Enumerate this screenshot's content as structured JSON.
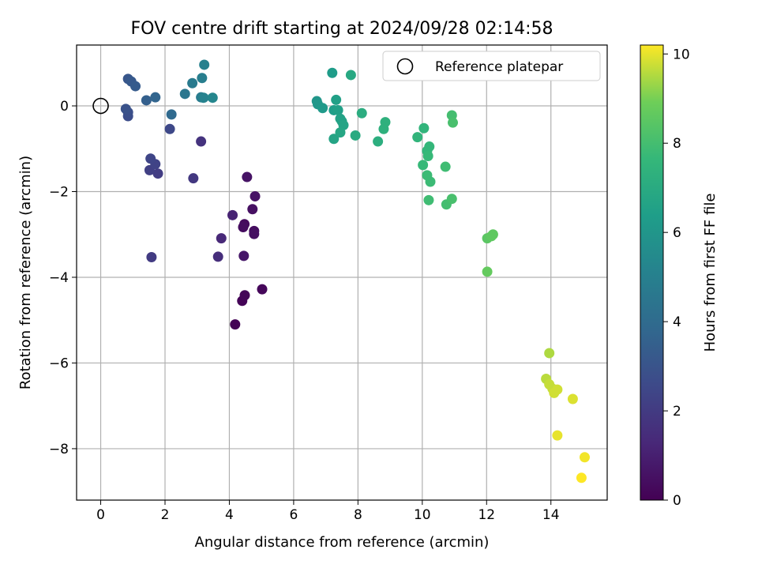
{
  "chart_data": {
    "type": "scatter",
    "title": "FOV centre drift starting at 2024/09/28 02:14:58",
    "xlabel": "Angular distance from reference (arcmin)",
    "ylabel": "Rotation from reference (arcmin)",
    "xlim": [
      -0.75,
      15.75
    ],
    "ylim": [
      -9.2,
      1.42
    ],
    "x_ticks": [
      0,
      2,
      4,
      6,
      8,
      10,
      12,
      14
    ],
    "y_ticks": [
      0,
      -2,
      -4,
      -6,
      -8
    ],
    "grid": true,
    "legend": {
      "placement": "top-right",
      "label": "Reference platepar"
    },
    "reference": {
      "x": 0,
      "y": 0
    },
    "colorbar": {
      "label": "Hours from first FF file",
      "min": 0,
      "max": 10.2,
      "ticks": [
        0,
        2,
        4,
        6,
        8,
        10
      ],
      "colormap": "viridis"
    },
    "points": [
      {
        "x": 4.18,
        "y": -5.1,
        "hours": 0.05
      },
      {
        "x": 4.4,
        "y": -4.55,
        "hours": 0.1
      },
      {
        "x": 4.48,
        "y": -4.42,
        "hours": 0.15
      },
      {
        "x": 5.02,
        "y": -4.28,
        "hours": 0.2
      },
      {
        "x": 4.47,
        "y": -2.76,
        "hours": 0.3
      },
      {
        "x": 4.43,
        "y": -2.83,
        "hours": 0.35
      },
      {
        "x": 4.77,
        "y": -2.92,
        "hours": 0.4
      },
      {
        "x": 4.77,
        "y": -2.99,
        "hours": 0.45
      },
      {
        "x": 4.72,
        "y": -2.41,
        "hours": 0.5
      },
      {
        "x": 4.8,
        "y": -2.11,
        "hours": 0.55
      },
      {
        "x": 4.55,
        "y": -1.66,
        "hours": 0.6
      },
      {
        "x": 4.45,
        "y": -3.5,
        "hours": 0.7
      },
      {
        "x": 4.1,
        "y": -2.55,
        "hours": 1.1
      },
      {
        "x": 3.75,
        "y": -3.09,
        "hours": 1.3
      },
      {
        "x": 3.65,
        "y": -3.52,
        "hours": 1.5
      },
      {
        "x": 3.12,
        "y": -0.83,
        "hours": 1.7
      },
      {
        "x": 2.88,
        "y": -1.69,
        "hours": 1.9
      },
      {
        "x": 1.58,
        "y": -3.53,
        "hours": 2.0
      },
      {
        "x": 1.78,
        "y": -1.58,
        "hours": 2.1
      },
      {
        "x": 1.52,
        "y": -1.5,
        "hours": 2.2
      },
      {
        "x": 1.7,
        "y": -1.36,
        "hours": 2.3
      },
      {
        "x": 1.55,
        "y": -1.23,
        "hours": 2.4
      },
      {
        "x": 2.15,
        "y": -0.54,
        "hours": 2.5
      },
      {
        "x": 0.85,
        "y": -0.24,
        "hours": 2.7
      },
      {
        "x": 0.85,
        "y": -0.15,
        "hours": 2.8
      },
      {
        "x": 0.78,
        "y": -0.07,
        "hours": 2.9
      },
      {
        "x": 0.85,
        "y": 0.63,
        "hours": 3.1
      },
      {
        "x": 0.95,
        "y": 0.57,
        "hours": 3.2
      },
      {
        "x": 1.08,
        "y": 0.46,
        "hours": 3.3
      },
      {
        "x": 1.42,
        "y": 0.13,
        "hours": 3.5
      },
      {
        "x": 1.7,
        "y": 0.2,
        "hours": 3.7
      },
      {
        "x": 2.2,
        "y": -0.2,
        "hours": 3.9
      },
      {
        "x": 2.62,
        "y": 0.28,
        "hours": 4.5
      },
      {
        "x": 2.85,
        "y": 0.53,
        "hours": 4.7
      },
      {
        "x": 3.12,
        "y": 0.2,
        "hours": 4.8
      },
      {
        "x": 3.15,
        "y": 0.65,
        "hours": 4.9
      },
      {
        "x": 3.22,
        "y": 0.96,
        "hours": 5.0
      },
      {
        "x": 3.2,
        "y": 0.19,
        "hours": 5.1
      },
      {
        "x": 3.48,
        "y": 0.19,
        "hours": 5.3
      },
      {
        "x": 6.72,
        "y": 0.11,
        "hours": 6.0
      },
      {
        "x": 6.75,
        "y": 0.04,
        "hours": 6.1
      },
      {
        "x": 6.9,
        "y": -0.05,
        "hours": 6.2
      },
      {
        "x": 7.2,
        "y": 0.77,
        "hours": 6.3
      },
      {
        "x": 7.25,
        "y": -0.1,
        "hours": 6.4
      },
      {
        "x": 7.32,
        "y": 0.14,
        "hours": 6.5
      },
      {
        "x": 7.38,
        "y": -0.1,
        "hours": 6.5
      },
      {
        "x": 7.45,
        "y": -0.3,
        "hours": 6.6
      },
      {
        "x": 7.5,
        "y": -0.36,
        "hours": 6.6
      },
      {
        "x": 7.55,
        "y": -0.45,
        "hours": 6.7
      },
      {
        "x": 7.25,
        "y": -0.77,
        "hours": 6.7
      },
      {
        "x": 7.45,
        "y": -0.62,
        "hours": 6.8
      },
      {
        "x": 7.78,
        "y": 0.72,
        "hours": 6.9
      },
      {
        "x": 7.92,
        "y": -0.69,
        "hours": 7.0
      },
      {
        "x": 8.12,
        "y": -0.17,
        "hours": 7.1
      },
      {
        "x": 8.62,
        "y": -0.83,
        "hours": 7.2
      },
      {
        "x": 8.8,
        "y": -0.54,
        "hours": 7.3
      },
      {
        "x": 8.85,
        "y": -0.38,
        "hours": 7.3
      },
      {
        "x": 9.85,
        "y": -0.73,
        "hours": 7.5
      },
      {
        "x": 10.05,
        "y": -0.52,
        "hours": 7.5
      },
      {
        "x": 10.22,
        "y": -0.95,
        "hours": 7.6
      },
      {
        "x": 10.15,
        "y": -1.05,
        "hours": 7.6
      },
      {
        "x": 10.18,
        "y": -1.17,
        "hours": 7.7
      },
      {
        "x": 10.02,
        "y": -1.38,
        "hours": 7.7
      },
      {
        "x": 10.15,
        "y": -1.62,
        "hours": 7.8
      },
      {
        "x": 10.25,
        "y": -1.77,
        "hours": 7.8
      },
      {
        "x": 10.2,
        "y": -2.2,
        "hours": 7.9
      },
      {
        "x": 10.72,
        "y": -1.42,
        "hours": 7.9
      },
      {
        "x": 10.75,
        "y": -2.3,
        "hours": 8.0
      },
      {
        "x": 10.92,
        "y": -0.22,
        "hours": 8.0
      },
      {
        "x": 10.95,
        "y": -0.39,
        "hours": 8.1
      },
      {
        "x": 10.92,
        "y": -2.17,
        "hours": 8.1
      },
      {
        "x": 12.02,
        "y": -3.09,
        "hours": 8.5
      },
      {
        "x": 12.15,
        "y": -3.04,
        "hours": 8.6
      },
      {
        "x": 12.2,
        "y": -3.0,
        "hours": 8.6
      },
      {
        "x": 12.02,
        "y": -3.87,
        "hours": 8.7
      },
      {
        "x": 13.95,
        "y": -5.77,
        "hours": 9.5
      },
      {
        "x": 13.85,
        "y": -6.37,
        "hours": 9.6
      },
      {
        "x": 13.95,
        "y": -6.5,
        "hours": 9.7
      },
      {
        "x": 14.05,
        "y": -6.6,
        "hours": 9.7
      },
      {
        "x": 14.1,
        "y": -6.7,
        "hours": 9.8
      },
      {
        "x": 14.2,
        "y": -6.62,
        "hours": 9.8
      },
      {
        "x": 14.68,
        "y": -6.84,
        "hours": 9.9
      },
      {
        "x": 14.2,
        "y": -7.69,
        "hours": 10.0
      },
      {
        "x": 15.05,
        "y": -8.2,
        "hours": 10.1
      },
      {
        "x": 14.95,
        "y": -8.68,
        "hours": 10.2
      }
    ]
  }
}
